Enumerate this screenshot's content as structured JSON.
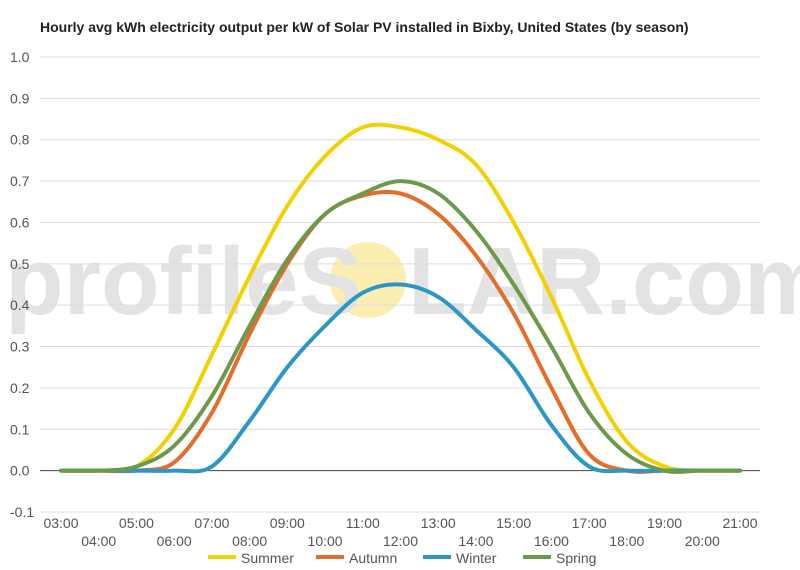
{
  "chart_data": {
    "type": "line",
    "title": "Hourly avg kWh electricity output per kW of Solar PV installed in Bixby, United States (by season)",
    "xlabel": "",
    "ylabel": "",
    "ylim": [
      -0.1,
      1.0
    ],
    "yticks": [
      "1.0",
      "0.9",
      "0.8",
      "0.7",
      "0.6",
      "0.5",
      "0.4",
      "0.3",
      "0.2",
      "0.1",
      "0.0",
      "-0.1"
    ],
    "x": [
      "03:00",
      "04:00",
      "05:00",
      "06:00",
      "07:00",
      "08:00",
      "09:00",
      "10:00",
      "11:00",
      "12:00",
      "13:00",
      "14:00",
      "15:00",
      "16:00",
      "17:00",
      "18:00",
      "19:00",
      "20:00",
      "21:00"
    ],
    "grid": true,
    "legend_position": "bottom",
    "series": [
      {
        "name": "Summer",
        "color": "#f5d000",
        "values": [
          0,
          0,
          0.01,
          0.1,
          0.28,
          0.47,
          0.64,
          0.76,
          0.83,
          0.83,
          0.8,
          0.74,
          0.6,
          0.42,
          0.22,
          0.07,
          0.01,
          0,
          0
        ]
      },
      {
        "name": "Autumn",
        "color": "#e36d2b",
        "values": [
          0,
          0,
          0,
          0.02,
          0.14,
          0.33,
          0.5,
          0.62,
          0.665,
          0.67,
          0.62,
          0.52,
          0.38,
          0.2,
          0.04,
          0,
          0,
          0,
          0
        ]
      },
      {
        "name": "Winter",
        "color": "#2b97c7",
        "values": [
          0,
          0,
          0,
          0,
          0.01,
          0.12,
          0.25,
          0.35,
          0.43,
          0.45,
          0.42,
          0.34,
          0.25,
          0.11,
          0.01,
          0,
          0,
          0,
          0
        ]
      },
      {
        "name": "Spring",
        "color": "#6c9a4a",
        "values": [
          0,
          0,
          0.01,
          0.06,
          0.18,
          0.35,
          0.51,
          0.62,
          0.67,
          0.7,
          0.67,
          0.58,
          0.45,
          0.3,
          0.14,
          0.04,
          0,
          0,
          0
        ]
      }
    ]
  },
  "watermark": {
    "text_left": "profileS",
    "text_right": "LAR.com"
  }
}
